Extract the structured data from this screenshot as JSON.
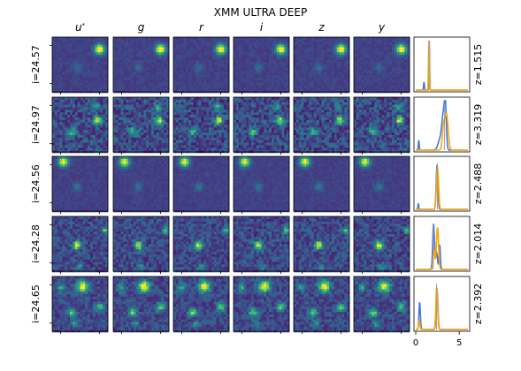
{
  "chart_data": {
    "type": "figure-grid",
    "title": "XMM ULTRA DEEP",
    "bands": [
      "u*",
      "g",
      "r",
      "i",
      "z",
      "y"
    ],
    "pdf_xticks": [
      0,
      5
    ],
    "pdf_xlim": [
      0,
      6
    ],
    "colors": {
      "pdf_blue": "#4477dd",
      "pdf_orange": "#ffa500",
      "truth_line": "#9a9a9a"
    },
    "rows": [
      {
        "mag_label": "i=24.57",
        "z_label": "z=1.515",
        "noise": 0.1,
        "sources": [
          {
            "x": 0.85,
            "y": 0.22,
            "s": 0.06,
            "a": 1.0
          },
          {
            "x": 0.45,
            "y": 0.55,
            "s": 0.05,
            "a": 0.18
          }
        ],
        "blue": [
          {
            "m": 1.55,
            "w": 0.04,
            "a": 1.0
          },
          {
            "m": 0.95,
            "w": 0.05,
            "a": 0.16
          }
        ],
        "orange": [
          {
            "m": 1.52,
            "w": 0.05,
            "a": 0.98
          }
        ]
      },
      {
        "mag_label": "i=24.97",
        "z_label": "z=3.319",
        "noise": 0.42,
        "sources": [
          {
            "x": 0.82,
            "y": 0.42,
            "s": 0.05,
            "a": 0.7
          },
          {
            "x": 0.35,
            "y": 0.62,
            "s": 0.05,
            "a": 0.45
          },
          {
            "x": 0.8,
            "y": 0.18,
            "s": 0.04,
            "a": 0.4
          }
        ],
        "blue": [
          {
            "m": 3.4,
            "w": 0.12,
            "a": 0.9
          },
          {
            "m": 3.15,
            "w": 0.15,
            "a": 0.55
          },
          {
            "m": 2.85,
            "w": 0.25,
            "a": 0.25
          },
          {
            "m": 0.35,
            "w": 0.05,
            "a": 0.2
          }
        ],
        "orange": [
          {
            "m": 3.55,
            "w": 0.18,
            "a": 0.7
          },
          {
            "m": 3.2,
            "w": 0.15,
            "a": 0.45
          }
        ]
      },
      {
        "mag_label": "i=24.56",
        "z_label": "z=2.488",
        "noise": 0.08,
        "sources": [
          {
            "x": 0.2,
            "y": 0.1,
            "s": 0.06,
            "a": 0.9
          },
          {
            "x": 0.45,
            "y": 0.55,
            "s": 0.05,
            "a": 0.22
          }
        ],
        "blue": [
          {
            "m": 2.45,
            "w": 0.1,
            "a": 0.9
          },
          {
            "m": 0.3,
            "w": 0.04,
            "a": 0.12
          }
        ],
        "orange": [
          {
            "m": 2.5,
            "w": 0.12,
            "a": 0.85
          }
        ]
      },
      {
        "mag_label": "i=24.28",
        "z_label": "z=2.014",
        "noise": 0.35,
        "sources": [
          {
            "x": 0.45,
            "y": 0.52,
            "s": 0.05,
            "a": 0.8
          },
          {
            "x": 0.95,
            "y": 0.25,
            "s": 0.04,
            "a": 0.5
          },
          {
            "x": 0.5,
            "y": 0.9,
            "s": 0.04,
            "a": 0.3
          }
        ],
        "blue": [
          {
            "m": 2.05,
            "w": 0.1,
            "a": 0.92
          },
          {
            "m": 2.75,
            "w": 0.08,
            "a": 0.5
          },
          {
            "m": 2.4,
            "w": 0.1,
            "a": 0.35
          }
        ],
        "orange": [
          {
            "m": 2.5,
            "w": 0.12,
            "a": 0.85
          },
          {
            "m": 2.1,
            "w": 0.1,
            "a": 0.4
          }
        ]
      },
      {
        "mag_label": "i=24.65",
        "z_label": "z=2.392",
        "noise": 0.3,
        "sources": [
          {
            "x": 0.55,
            "y": 0.18,
            "s": 0.07,
            "a": 0.85
          },
          {
            "x": 0.35,
            "y": 0.65,
            "s": 0.05,
            "a": 0.6
          },
          {
            "x": 0.85,
            "y": 0.55,
            "s": 0.05,
            "a": 0.55
          },
          {
            "x": 0.4,
            "y": 0.85,
            "s": 0.04,
            "a": 0.35
          },
          {
            "x": 0.15,
            "y": 0.2,
            "s": 0.05,
            "a": 0.4
          }
        ],
        "blue": [
          {
            "m": 0.45,
            "w": 0.08,
            "a": 0.55
          },
          {
            "m": 2.45,
            "w": 0.1,
            "a": 0.8
          }
        ],
        "orange": [
          {
            "m": 2.42,
            "w": 0.1,
            "a": 0.85
          },
          {
            "m": 0.4,
            "w": 0.08,
            "a": 0.18
          }
        ]
      }
    ]
  }
}
